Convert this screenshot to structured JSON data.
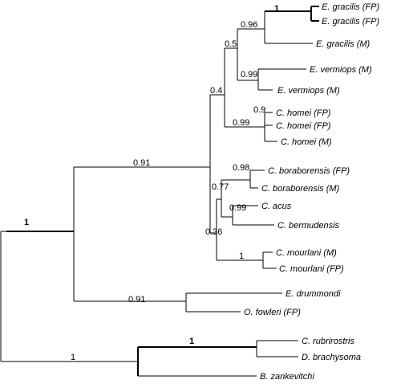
{
  "tree": {
    "taxa": [
      {
        "id": "t1",
        "label": "E. gracilis (FP)"
      },
      {
        "id": "t2",
        "label": "E. gracilis (FP)"
      },
      {
        "id": "t3",
        "label": "E. gracilis (M)"
      },
      {
        "id": "t4",
        "label": "E. vermiops (M)"
      },
      {
        "id": "t5",
        "label": "E. vermiops (M)"
      },
      {
        "id": "t6",
        "label": "C. homei (FP)"
      },
      {
        "id": "t7",
        "label": "C. homei (FP)"
      },
      {
        "id": "t8",
        "label": "C. homei (M)"
      },
      {
        "id": "t9",
        "label": "C. boraborensis (FP)"
      },
      {
        "id": "t10",
        "label": "C. boraborensis (M)"
      },
      {
        "id": "t11",
        "label": "C. acus"
      },
      {
        "id": "t12",
        "label": "C. bermudensis"
      },
      {
        "id": "t13",
        "label": "C. mourlani (M)"
      },
      {
        "id": "t14",
        "label": "C. mourlani (FP)"
      },
      {
        "id": "t15",
        "label": "E. drummondi"
      },
      {
        "id": "t16",
        "label": "O. fowleri (FP)"
      },
      {
        "id": "t17",
        "label": "C. rubrirostris"
      },
      {
        "id": "t18",
        "label": "D. brachysoma"
      },
      {
        "id": "t19",
        "label": "B. zankevitchi"
      }
    ],
    "supports": [
      {
        "id": "s1",
        "value": "1",
        "bold": true
      },
      {
        "id": "s2",
        "value": "0.96",
        "bold": false
      },
      {
        "id": "s3",
        "value": "0.5",
        "bold": false
      },
      {
        "id": "s4",
        "value": "0.99",
        "bold": false
      },
      {
        "id": "s5",
        "value": "0.4",
        "bold": false
      },
      {
        "id": "s6",
        "value": "0.9",
        "bold": false
      },
      {
        "id": "s7",
        "value": "0.99",
        "bold": false
      },
      {
        "id": "s8",
        "value": "0.98",
        "bold": false
      },
      {
        "id": "s9",
        "value": "0.77",
        "bold": false
      },
      {
        "id": "s10",
        "value": "0.99",
        "bold": false
      },
      {
        "id": "s11",
        "value": "0.36",
        "bold": false
      },
      {
        "id": "s12",
        "value": "1",
        "bold": false
      },
      {
        "id": "s13",
        "value": "0.91",
        "bold": false
      },
      {
        "id": "s14",
        "value": "1",
        "bold": true
      },
      {
        "id": "s15",
        "value": "0.91",
        "bold": false
      },
      {
        "id": "s16",
        "value": "1",
        "bold": true
      },
      {
        "id": "s17",
        "value": "1",
        "bold": false
      }
    ]
  }
}
